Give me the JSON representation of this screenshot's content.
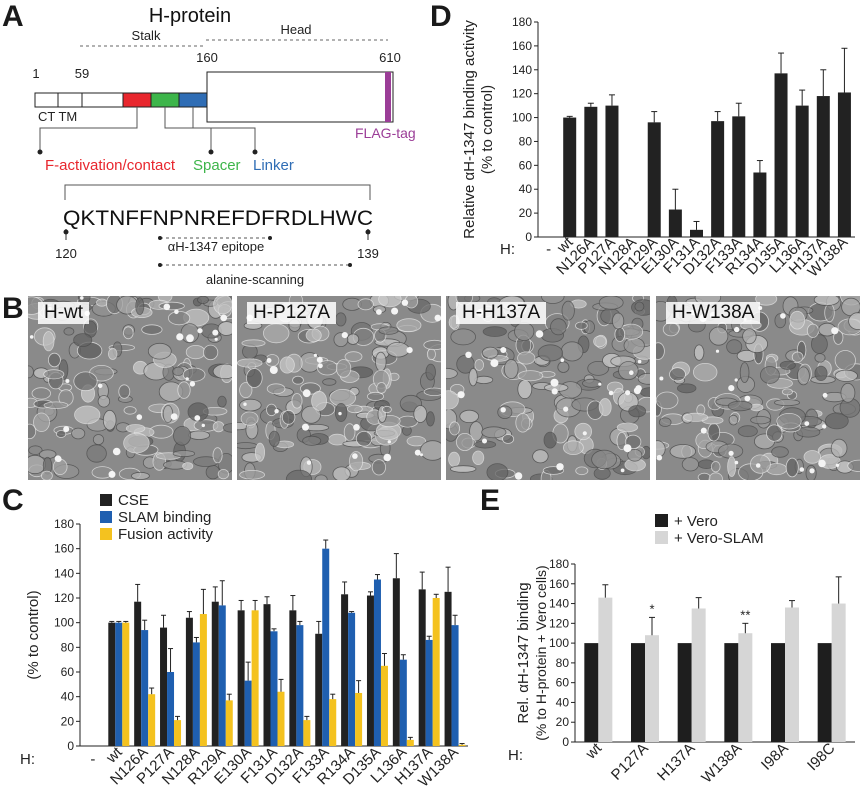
{
  "panel_labels": {
    "a": "A",
    "b": "B",
    "c": "C",
    "d": "D",
    "e": "E"
  },
  "protein": {
    "title": "H-protein",
    "stalk_label": "Stalk",
    "head_label": "Head",
    "pos_1": "1",
    "pos_59": "59",
    "pos_160": "160",
    "pos_610": "610",
    "ct_tm": "CT TM",
    "flag_tag": "FLAG-tag",
    "f_activation": "F-activation/contact",
    "spacer": "Spacer",
    "linker": "Linker",
    "sequence": "QKTNFFNPNREFDFRDLHWC",
    "seq_start": "120",
    "seq_end": "139",
    "epitope": "αH-1347 epitope",
    "alanine": "alanine-scanning",
    "colors": {
      "f_activation": "#e8262d",
      "spacer": "#3db54a",
      "linker": "#2f6db5",
      "flag": "#9b3d97"
    }
  },
  "micrographs": [
    {
      "label": "H-wt"
    },
    {
      "label": "H-P127A"
    },
    {
      "label": "H-H137A"
    },
    {
      "label": "H-W138A"
    }
  ],
  "chart_data": [
    {
      "id": "D",
      "type": "bar",
      "ylabel_line1": "Relative αH-1347 binding activity",
      "ylabel_line2": "(% to  control)",
      "row_prefix": "H:",
      "ylim": [
        0,
        180
      ],
      "yticks": [
        "0",
        "20",
        "40",
        "60",
        "80",
        "100",
        "120",
        "140",
        "160",
        "180"
      ],
      "categories": [
        "-",
        "wt",
        "N126A",
        "P127A",
        "N128A",
        "R129A",
        "E130A",
        "F131A",
        "D132A",
        "F133A",
        "R134A",
        "D135A",
        "L136A",
        "H137A",
        "W138A"
      ],
      "values": [
        0,
        100,
        109,
        110,
        0,
        96,
        23,
        6,
        97,
        101,
        54,
        137,
        110,
        118,
        121
      ],
      "errors": [
        0,
        1,
        3,
        9,
        0,
        9,
        17,
        7,
        8,
        11,
        10,
        17,
        13,
        22,
        37
      ],
      "color": "#222222"
    },
    {
      "id": "C",
      "type": "bar",
      "ylabel": "(% to control)",
      "row_prefix": "H:",
      "ylim": [
        0,
        180
      ],
      "yticks": [
        "0",
        "20",
        "40",
        "60",
        "80",
        "100",
        "120",
        "140",
        "160",
        "180"
      ],
      "categories": [
        "-",
        "wt",
        "N126A",
        "P127A",
        "N128A",
        "R129A",
        "E130A",
        "F131A",
        "D132A",
        "F133A",
        "R134A",
        "D135A",
        "L136A",
        "H137A",
        "W138A"
      ],
      "series": [
        {
          "name": "CSE",
          "color": "#222222",
          "values": [
            0,
            100,
            117,
            96,
            104,
            117,
            110,
            115,
            110,
            91,
            123,
            122,
            136,
            127,
            125
          ],
          "errors": [
            0,
            1,
            14,
            10,
            5,
            12,
            8,
            6,
            12,
            10,
            10,
            3,
            20,
            14,
            20
          ]
        },
        {
          "name": "SLAM binding",
          "color": "#1f5fb0",
          "values": [
            0,
            100,
            94,
            60,
            84,
            114,
            53,
            93,
            98,
            160,
            108,
            135,
            70,
            86,
            98
          ],
          "errors": [
            0,
            1,
            8,
            19,
            4,
            20,
            15,
            2,
            3,
            7,
            1,
            4,
            4,
            3,
            8
          ]
        },
        {
          "name": "Fusion activity",
          "color": "#f4c21f",
          "values": [
            0,
            100,
            42,
            21,
            107,
            37,
            110,
            44,
            21,
            38,
            43,
            65,
            5,
            120,
            1
          ],
          "errors": [
            0,
            1,
            5,
            3,
            20,
            5,
            8,
            10,
            3,
            4,
            10,
            10,
            2,
            3,
            1
          ]
        }
      ]
    },
    {
      "id": "E",
      "type": "bar",
      "ylabel_line1": "Rel. αH-1347 binding",
      "ylabel_line2": "(% to H-protein + Vero cells)",
      "row_prefix": "H:",
      "ylim": [
        0,
        180
      ],
      "yticks": [
        "0",
        "20",
        "40",
        "60",
        "80",
        "100",
        "120",
        "140",
        "160",
        "180"
      ],
      "categories": [
        "wt",
        "P127A",
        "H137A",
        "W138A",
        "I98A",
        "I98C"
      ],
      "series": [
        {
          "name": "+ Vero",
          "color": "#1e1e1e",
          "values": [
            100,
            100,
            100,
            100,
            100,
            100
          ],
          "errors": [
            0,
            0,
            0,
            0,
            0,
            0
          ]
        },
        {
          "name": "+ Vero-SLAM",
          "color": "#d6d6d6",
          "values": [
            146,
            108,
            135,
            110,
            136,
            140
          ],
          "errors": [
            13,
            18,
            11,
            10,
            7,
            27
          ]
        }
      ],
      "significance": [
        "",
        "*",
        "",
        "**",
        "",
        ""
      ]
    }
  ]
}
